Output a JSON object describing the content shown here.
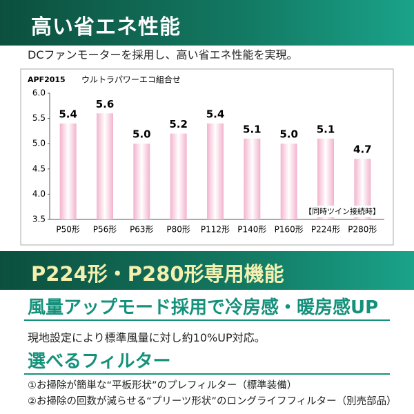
{
  "header": {
    "title": "高い省エネ性能",
    "subtitle": "DCファンモーターを採用し、高い省エネ性能を実現。"
  },
  "chart_data": {
    "type": "bar",
    "title": "APF2015",
    "subtitle": "ウルトラパワーエコ組合せ",
    "categories": [
      "P50形",
      "P56形",
      "P63形",
      "P80形",
      "P112形",
      "P140形",
      "P160形",
      "P224形",
      "P280形"
    ],
    "values": [
      5.4,
      5.6,
      5.0,
      5.2,
      5.4,
      5.1,
      5.0,
      5.1,
      4.7
    ],
    "value_labels": [
      "5.4",
      "5.6",
      "5.0",
      "5.2",
      "5.4",
      "5.1",
      "5.0",
      "5.1",
      "4.7"
    ],
    "color": "#f3b3cd",
    "ylim": [
      3.5,
      6.0
    ],
    "yticks": [
      {
        "value": 3.5,
        "label": "3.5"
      },
      {
        "value": 4.0,
        "label": "4.0"
      },
      {
        "value": 4.5,
        "label": "4.5"
      },
      {
        "value": 5.0,
        "label": "5.0"
      },
      {
        "value": 5.5,
        "label": "5.5"
      },
      {
        "value": 6.0,
        "label": "6.0"
      }
    ],
    "annotation": "【同時ツイン接続時】"
  },
  "section": {
    "title": "P224形・P280形専用機能"
  },
  "features": [
    {
      "heading": "風量アップモード採用で冷房感・暖房感UP",
      "text": "現地設定により標準風量に対し約10%UP対応。"
    },
    {
      "heading": "選べるフィルター",
      "items": [
        "①お掃除が簡単な“平板形状”のプレフィルター（標準装備）",
        "②お掃除の回数が減らせる“プリーツ形状”のロングライフフィルター（別売部品）"
      ]
    }
  ]
}
